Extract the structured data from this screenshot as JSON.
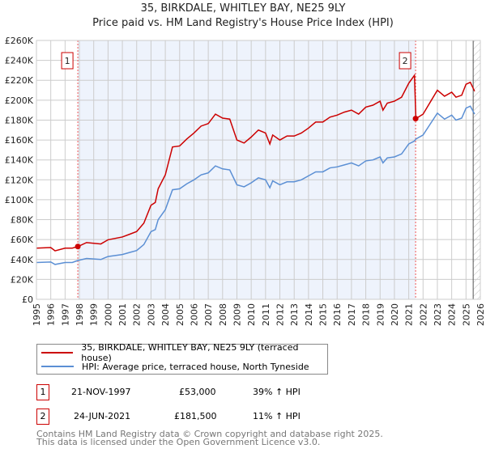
{
  "chart_data": {
    "type": "line",
    "title": "35, BIRKDALE, WHITLEY BAY, NE25 9LY",
    "subtitle": "Price paid vs. HM Land Registry's House Price Index (HPI)",
    "xlim": [
      1995,
      2026
    ],
    "ylim": [
      0,
      260000
    ],
    "x_ticks": [
      "1995",
      "1996",
      "1997",
      "1998",
      "1999",
      "2000",
      "2001",
      "2002",
      "2003",
      "2004",
      "2005",
      "2006",
      "2007",
      "2008",
      "2009",
      "2010",
      "2011",
      "2012",
      "2013",
      "2014",
      "2015",
      "2016",
      "2017",
      "2018",
      "2019",
      "2020",
      "2021",
      "2022",
      "2023",
      "2024",
      "2025",
      "2026"
    ],
    "y_ticks": [
      "£0",
      "£20K",
      "£40K",
      "£60K",
      "£80K",
      "£100K",
      "£120K",
      "£140K",
      "£160K",
      "£180K",
      "£200K",
      "£220K",
      "£240K",
      "£260K"
    ],
    "x": [
      1995,
      1996,
      1996.3,
      1997,
      1997.5,
      1997.9,
      1998.5,
      1999.5,
      2000,
      2001,
      2001.5,
      2002,
      2002.5,
      2003,
      2003.3,
      2003.5,
      2004,
      2004.5,
      2005,
      2005.5,
      2006,
      2006.5,
      2007,
      2007.5,
      2008,
      2008.5,
      2009,
      2009.5,
      2010,
      2010.5,
      2011,
      2011.3,
      2011.5,
      2012,
      2012.5,
      2013,
      2013.5,
      2014,
      2014.5,
      2015,
      2015.5,
      2016,
      2016.5,
      2017,
      2017.5,
      2018,
      2018.5,
      2019,
      2019.2,
      2019.5,
      2020,
      2020.5,
      2021,
      2021.4,
      2021.5,
      2022,
      2022.5,
      2023,
      2023.5,
      2024,
      2024.3,
      2024.7,
      2025,
      2025.3,
      2025.6
    ],
    "series": [
      {
        "name": "35, BIRKDALE, WHITLEY BAY, NE25 9LY (terraced house)",
        "color": "#cc0000",
        "values": [
          51400,
          52000,
          48700,
          51400,
          51400,
          53000,
          57000,
          55600,
          59800,
          62600,
          65300,
          68100,
          76500,
          94500,
          97300,
          111000,
          125000,
          153000,
          154000,
          161000,
          167000,
          174000,
          176500,
          186000,
          182000,
          181000,
          160000,
          157000,
          163000,
          170000,
          167000,
          156000,
          165000,
          160000,
          164000,
          164000,
          167000,
          172000,
          178000,
          178000,
          183000,
          185000,
          188000,
          190000,
          186000,
          193000,
          195000,
          199000,
          190000,
          197000,
          199000,
          203000,
          217000,
          225000,
          181500,
          186000,
          198000,
          210000,
          204000,
          208000,
          203000,
          205000,
          216000,
          218000,
          209000
        ]
      },
      {
        "name": "HPI: Average price, terraced house, North Tyneside",
        "color": "#5b8fd4",
        "values": [
          37000,
          37500,
          35000,
          37000,
          37000,
          39000,
          41000,
          40000,
          43000,
          45000,
          47000,
          49000,
          55000,
          68000,
          70000,
          80000,
          90000,
          110000,
          111000,
          116000,
          120000,
          125000,
          127000,
          134000,
          131000,
          130000,
          115000,
          113000,
          117000,
          122000,
          120000,
          112000,
          119000,
          115000,
          118000,
          118000,
          120000,
          124000,
          128000,
          128000,
          132000,
          133000,
          135000,
          137000,
          134000,
          139000,
          140000,
          143000,
          137000,
          142000,
          143000,
          146000,
          156000,
          159000,
          161000,
          165000,
          176000,
          187000,
          181000,
          185000,
          180000,
          182000,
          192000,
          194000,
          186000
        ]
      }
    ],
    "sales": [
      {
        "label": "1",
        "year": 1997.89,
        "price": 53000
      },
      {
        "label": "2",
        "year": 2021.48,
        "price": 181500
      }
    ],
    "forecast_start": 2025.5
  },
  "legend": {
    "red": "35, BIRKDALE, WHITLEY BAY, NE25 9LY (terraced house)",
    "blue": "HPI: Average price, terraced house, North Tyneside"
  },
  "table": [
    {
      "num": "1",
      "date": "21-NOV-1997",
      "price": "£53,000",
      "hpi": "39% ↑ HPI"
    },
    {
      "num": "2",
      "date": "24-JUN-2021",
      "price": "£181,500",
      "hpi": "11% ↑ HPI"
    }
  ],
  "footer": [
    "Contains HM Land Registry data © Crown copyright and database right 2025.",
    "This data is licensed under the Open Government Licence v3.0."
  ]
}
